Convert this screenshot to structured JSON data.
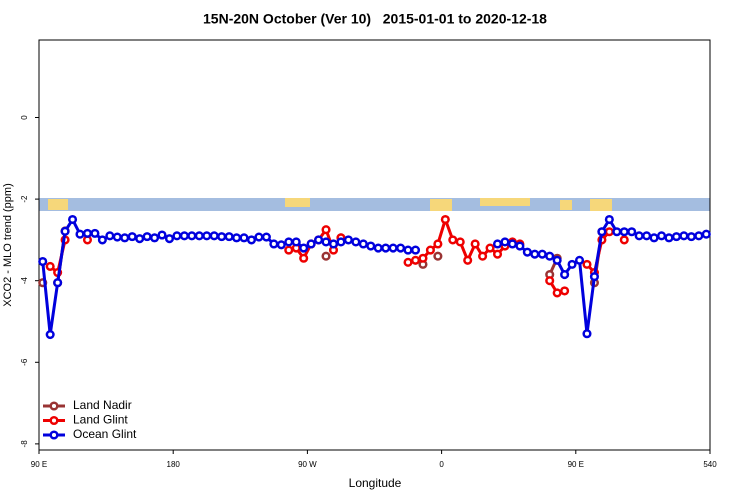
{
  "chart_data": {
    "type": "line",
    "title": "15N-20N October (Ver 10)   2015-01-01 to 2020-12-18",
    "xlabel": "Longitude",
    "ylabel": "XCO2 - MLO trend (ppm)",
    "xlim": [
      90,
      540
    ],
    "xticks": [
      {
        "value": 90,
        "label": "90 E"
      },
      180,
      {
        "value": 270,
        "label": "90 W"
      },
      {
        "value": 360,
        "label": "0"
      },
      {
        "value": 450,
        "label": "90 E"
      },
      540
    ],
    "ylim": [
      -8.15,
      1.9
    ],
    "yticks": [
      0,
      -2,
      -4,
      -6,
      -8
    ],
    "legend": "lower left",
    "x": [
      92.5,
      97.5,
      102.5,
      107.5,
      112.5,
      117.5,
      122.5,
      127.5,
      132.5,
      137.5,
      142.5,
      147.5,
      152.5,
      157.5,
      162.5,
      167.5,
      172.5,
      177.5,
      182.5,
      187.5,
      192.5,
      197.5,
      202.5,
      207.5,
      212.5,
      217.5,
      222.5,
      227.5,
      232.5,
      237.5,
      242.5,
      247.5,
      252.5,
      257.5,
      262.5,
      267.5,
      272.5,
      277.5,
      282.5,
      287.5,
      292.5,
      297.5,
      302.5,
      307.5,
      312.5,
      317.5,
      322.5,
      327.5,
      332.5,
      337.5,
      342.5,
      347.5,
      352.5,
      357.5,
      362.5,
      367.5,
      372.5,
      377.5,
      382.5,
      387.5,
      392.5,
      397.5,
      402.5,
      407.5,
      412.5,
      417.5,
      422.5,
      427.5,
      432.5,
      437.5,
      442.5,
      447.5,
      452.5,
      457.5,
      462.5,
      467.5,
      472.5,
      477.5,
      482.5,
      487.5,
      492.5,
      497.5,
      502.5,
      507.5,
      512.5,
      517.5,
      522.5,
      527.5,
      532.5,
      537.5
    ],
    "series": [
      {
        "name": "Land Nadir",
        "color": "#993333",
        "values": [
          -4.05,
          null,
          -4.05,
          -2.78,
          null,
          null,
          null,
          null,
          null,
          null,
          null,
          null,
          null,
          null,
          null,
          null,
          null,
          null,
          null,
          null,
          null,
          null,
          null,
          null,
          null,
          null,
          null,
          null,
          null,
          null,
          null,
          null,
          null,
          null,
          null,
          null,
          null,
          null,
          -3.4,
          null,
          -2.95,
          null,
          null,
          null,
          null,
          null,
          null,
          null,
          null,
          null,
          null,
          -3.6,
          null,
          -3.4,
          null,
          null,
          null,
          null,
          null,
          null,
          null,
          null,
          null,
          null,
          null,
          null,
          null,
          null,
          -3.85,
          -3.45,
          null,
          null,
          null,
          null,
          -4.05,
          -2.8,
          null,
          null,
          null,
          null,
          null,
          null,
          null,
          null,
          null,
          null,
          null,
          null,
          null,
          null
        ]
      },
      {
        "name": "Land Glint",
        "color": "#ee0000",
        "values": [
          null,
          -3.65,
          -3.8,
          -3.0,
          null,
          null,
          -3.0,
          null,
          null,
          null,
          null,
          null,
          null,
          null,
          null,
          null,
          null,
          null,
          null,
          null,
          null,
          null,
          null,
          null,
          null,
          null,
          null,
          null,
          null,
          null,
          null,
          null,
          null,
          -3.25,
          -3.2,
          -3.45,
          -3.1,
          -3.0,
          -2.75,
          -3.25,
          -2.95,
          null,
          null,
          null,
          null,
          null,
          null,
          null,
          null,
          -3.55,
          -3.5,
          -3.45,
          -3.25,
          -3.1,
          -2.5,
          -3.0,
          -3.05,
          -3.5,
          -3.1,
          -3.4,
          -3.2,
          -3.35,
          -3.15,
          -3.05,
          -3.1,
          null,
          null,
          null,
          -4.0,
          -4.3,
          -4.25,
          null,
          null,
          -3.6,
          -3.8,
          -3.0,
          -2.8,
          null,
          -3.0,
          null,
          null,
          null,
          null,
          null,
          null,
          null,
          null,
          null,
          null,
          null
        ]
      },
      {
        "name": "Ocean Glint",
        "color": "#0000dd",
        "values": [
          -3.53,
          -5.32,
          -4.05,
          -2.79,
          -2.5,
          -2.86,
          -2.84,
          -2.84,
          -3.0,
          -2.9,
          -2.93,
          -2.95,
          -2.92,
          -2.97,
          -2.92,
          -2.95,
          -2.88,
          -2.97,
          -2.9,
          -2.9,
          -2.9,
          -2.9,
          -2.9,
          -2.9,
          -2.92,
          -2.92,
          -2.95,
          -2.95,
          -3.0,
          -2.93,
          -2.93,
          -3.1,
          -3.12,
          -3.05,
          -3.05,
          -3.2,
          -3.1,
          -3.0,
          -3.05,
          -3.1,
          -3.05,
          -3.0,
          -3.05,
          -3.1,
          -3.15,
          -3.2,
          -3.2,
          -3.2,
          -3.2,
          -3.25,
          -3.25,
          null,
          null,
          null,
          null,
          null,
          null,
          null,
          null,
          null,
          null,
          -3.1,
          -3.05,
          -3.1,
          -3.15,
          -3.3,
          -3.35,
          -3.35,
          -3.4,
          -3.5,
          -3.85,
          -3.6,
          -3.5,
          -5.3,
          -3.9,
          -2.8,
          -2.5,
          -2.8,
          -2.8,
          -2.8,
          -2.9,
          -2.9,
          -2.95,
          -2.9,
          -2.95,
          -2.92,
          -2.9,
          -2.92,
          -2.9,
          -2.86
        ]
      }
    ]
  }
}
